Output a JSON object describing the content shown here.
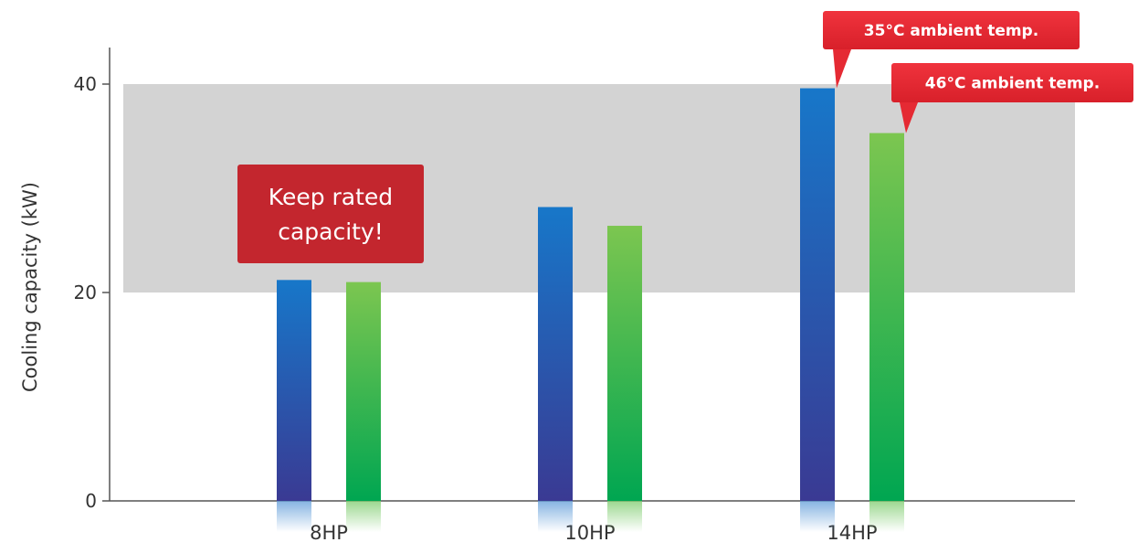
{
  "chart_data": {
    "type": "bar",
    "ylabel": "Cooling capacity (kW)",
    "xlabel": "",
    "categories": [
      "8HP",
      "10HP",
      "14HP"
    ],
    "ylim": [
      0,
      45
    ],
    "yticks": [
      0,
      20,
      40
    ],
    "grid": false,
    "series": [
      {
        "name": "35°C ambient temp.",
        "values": [
          21.2,
          28.2,
          39.6
        ],
        "color_top": "#1777C9",
        "color_bottom": "#3A3A93"
      },
      {
        "name": "46°C ambient temp.",
        "values": [
          21.0,
          26.4,
          35.3
        ],
        "color_top": "#7CC650",
        "color_bottom": "#00A651"
      }
    ],
    "highlight_band": {
      "from": 20,
      "to": 40,
      "color": "#D3D3D3"
    },
    "annotations": [
      {
        "text_lines": [
          "Keep rated",
          "capacity!"
        ],
        "color": "#C3262E"
      }
    ],
    "legend": "callouts"
  }
}
